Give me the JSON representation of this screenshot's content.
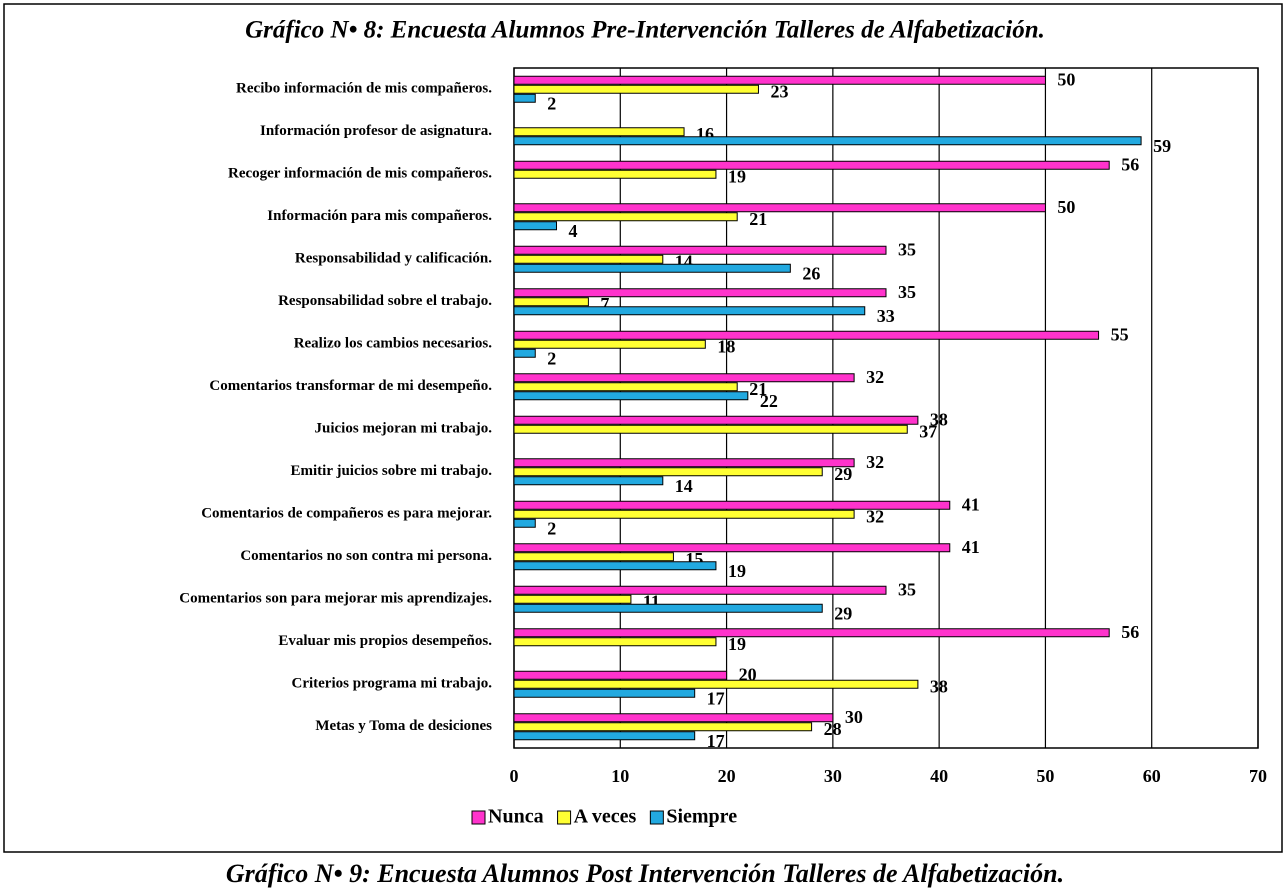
{
  "chart_data": {
    "type": "hbar",
    "title": "Gráfico N• 8: Encuesta Alumnos Pre-Intervención Talleres de Alfabetización.",
    "categories": [
      "Recibo información de mis compañeros.",
      "Información profesor de asignatura.",
      "Recoger información de mis compañeros.",
      "Información para mis compañeros.",
      "Responsabilidad y calificación.",
      "Responsabilidad sobre el trabajo.",
      "Realizo los cambios necesarios.",
      "Comentarios transformar de mi desempeño.",
      "Juicios mejoran mi trabajo.",
      "Emitir juicios sobre mi trabajo.",
      "Comentarios de compañeros es para mejorar.",
      "Comentarios no son contra mi persona.",
      "Comentarios son para mejorar mis aprendizajes.",
      "Evaluar mis propios desempeños.",
      "Criterios programa mi trabajo.",
      "Metas y Toma de desiciones"
    ],
    "series": [
      {
        "name": "Nunca",
        "color": "#ff33cc",
        "values": [
          50,
          null,
          56,
          50,
          35,
          35,
          55,
          32,
          38,
          32,
          41,
          41,
          35,
          56,
          20,
          30
        ]
      },
      {
        "name": "A veces",
        "color": "#ffff33",
        "values": [
          23,
          16,
          19,
          21,
          14,
          7,
          18,
          21,
          37,
          29,
          32,
          15,
          11,
          19,
          38,
          28
        ]
      },
      {
        "name": "Siempre",
        "color": "#22a9e0",
        "values": [
          2,
          59,
          null,
          4,
          26,
          33,
          2,
          22,
          null,
          14,
          2,
          19,
          29,
          null,
          17,
          17
        ]
      }
    ],
    "xlim": [
      0,
      70
    ],
    "xticks": [
      0,
      10,
      20,
      30,
      40,
      50,
      60,
      70
    ],
    "grid": true,
    "legend": "bottom"
  },
  "next_caption": "Gráfico N• 9: Encuesta Alumnos Post Intervención Talleres de Alfabetización."
}
